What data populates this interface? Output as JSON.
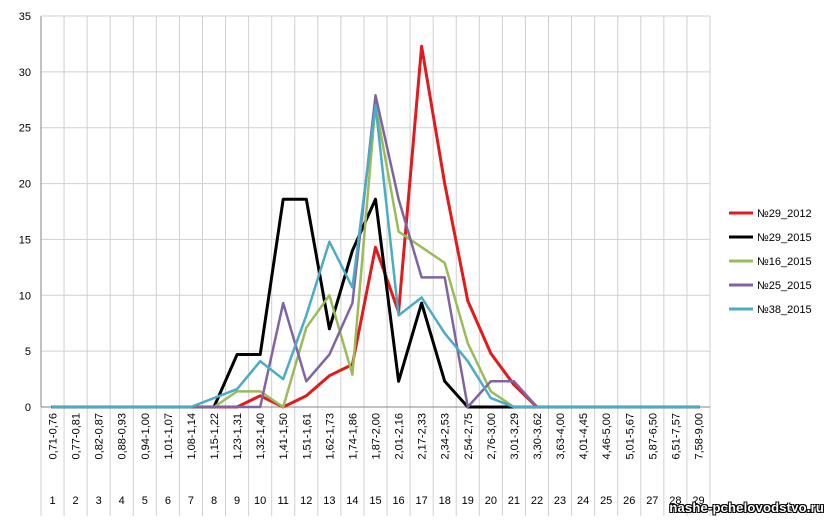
{
  "chart_data": {
    "type": "line",
    "categories": [
      "0,71-0,76",
      "0,77-0,81",
      "0,82-0,87",
      "0,88-0,93",
      "0,94-1,00",
      "1,01-1,07",
      "1,08-1,14",
      "1,15-1,22",
      "1,23-1,31",
      "1,32-1,40",
      "1,41-1,50",
      "1,51-1,61",
      "1,62-1,73",
      "1,74-1,86",
      "1,87-2,00",
      "2,01-2,16",
      "2,17-2,33",
      "2,34-2,53",
      "2,54-2,75",
      "2,76-3,00",
      "3,01-3,29",
      "3,30-3,62",
      "3,63-4,00",
      "4,01-4,45",
      "4,46-5,00",
      "5,01-5,67",
      "5,87-6,50",
      "6,51-7,57",
      "7,58-9,00"
    ],
    "index_labels": [
      "1",
      "2",
      "3",
      "4",
      "5",
      "6",
      "7",
      "8",
      "9",
      "10",
      "11",
      "12",
      "13",
      "14",
      "15",
      "16",
      "17",
      "18",
      "19",
      "20",
      "21",
      "22",
      "23",
      "24",
      "25",
      "26",
      "27",
      "28",
      "29"
    ],
    "ylim": [
      0,
      35
    ],
    "yticks": [
      "0",
      "5",
      "10",
      "15",
      "20",
      "25",
      "30",
      "35"
    ],
    "grid": true,
    "legend": "right",
    "series": [
      {
        "name": "№29_2012",
        "color": "#e31a1c",
        "width": 3,
        "values": [
          0,
          0,
          0,
          0,
          0,
          0,
          0,
          0,
          0,
          1,
          0,
          1,
          2.8,
          3.8,
          14.3,
          8.5,
          32.3,
          20,
          9.5,
          4.8,
          2,
          0,
          0,
          0,
          0,
          0,
          0,
          0,
          0
        ]
      },
      {
        "name": "№29_2015",
        "color": "#000000",
        "width": 3,
        "values": [
          0,
          0,
          0,
          0,
          0,
          0,
          0,
          0,
          4.7,
          4.7,
          18.6,
          18.6,
          7,
          14,
          18.6,
          2.3,
          9.3,
          2.3,
          0,
          0,
          0,
          0,
          0,
          0,
          0,
          0,
          0,
          0,
          0
        ]
      },
      {
        "name": "№16_2015",
        "color": "#9bbb59",
        "width": 2.5,
        "values": [
          0,
          0,
          0,
          0,
          0,
          0,
          0,
          0,
          1.4,
          1.4,
          0,
          7.1,
          10,
          2.9,
          27.1,
          15.7,
          14.3,
          12.9,
          5.7,
          1.4,
          0,
          0,
          0,
          0,
          0,
          0,
          0,
          0,
          0
        ]
      },
      {
        "name": "№25_2015",
        "color": "#8064a2",
        "width": 2.5,
        "values": [
          0,
          0,
          0,
          0,
          0,
          0,
          0,
          0,
          0,
          0,
          9.3,
          2.3,
          4.7,
          9.3,
          27.9,
          18.6,
          11.6,
          11.6,
          0,
          2.3,
          2.3,
          0,
          0,
          0,
          0,
          0,
          0,
          0,
          0
        ]
      },
      {
        "name": "№38_2015",
        "color": "#4bacc6",
        "width": 2.5,
        "values": [
          0,
          0,
          0,
          0,
          0,
          0,
          0,
          0.8,
          1.6,
          4.1,
          2.5,
          8.2,
          14.8,
          10.7,
          27,
          8.2,
          9.8,
          6.6,
          4.1,
          0.8,
          0,
          0,
          0,
          0,
          0,
          0,
          0,
          0,
          0
        ]
      }
    ]
  },
  "watermark": "nashe-pchelovodstvo.ru"
}
